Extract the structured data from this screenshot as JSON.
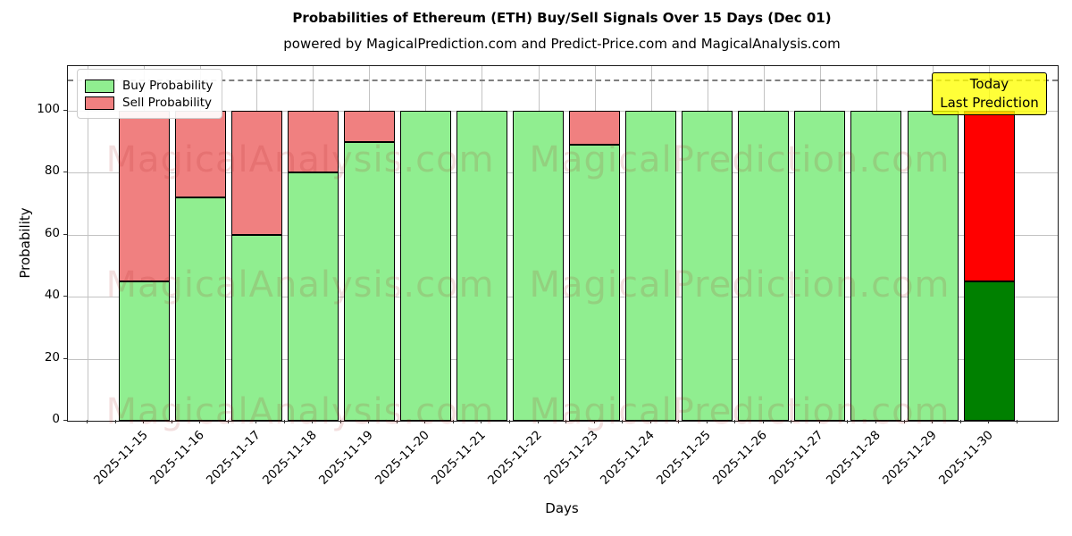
{
  "title": "Probabilities of Ethereum (ETH) Buy/Sell Signals Over 15 Days (Dec 01)",
  "subtitle": "powered by MagicalPrediction.com and Predict-Price.com and MagicalAnalysis.com",
  "legend": {
    "items": [
      {
        "label": "Buy Probability",
        "color": "#90EE90"
      },
      {
        "label": "Sell Probability",
        "color": "#F08080"
      }
    ]
  },
  "annotation": {
    "line1": "Today",
    "line2": "Last Prediction",
    "bg_color": "#FFFF00"
  },
  "watermarks": {
    "left": "MagicalAnalysis.com",
    "right": "MagicalPrediction.com"
  },
  "axes": {
    "x_label": "Days",
    "y_label": "Probability",
    "y_ticks": [
      "0",
      "20",
      "40",
      "60",
      "80",
      "100"
    ]
  },
  "colors": {
    "buy": "#90EE90",
    "sell": "#F08080",
    "today_buy": "#008000",
    "today_sell": "#FF0000",
    "grid": "#c3c3c3",
    "dashed_line": "#7f7f7f"
  },
  "chart_data": {
    "type": "bar",
    "stacked": true,
    "title": "Probabilities of Ethereum (ETH) Buy/Sell Signals Over 15 Days (Dec 01)",
    "xlabel": "Days",
    "ylabel": "Probability",
    "ylim": [
      0,
      114.5
    ],
    "grid": true,
    "legend_position": "upper left",
    "dashed_line_y": 110,
    "categories": [
      "2025-11-15",
      "2025-11-16",
      "2025-11-17",
      "2025-11-18",
      "2025-11-19",
      "2025-11-20",
      "2025-11-21",
      "2025-11-22",
      "2025-11-23",
      "2025-11-24",
      "2025-11-25",
      "2025-11-26",
      "2025-11-27",
      "2025-11-28",
      "2025-11-29",
      "2025-11-30"
    ],
    "series": [
      {
        "name": "Buy Probability",
        "color": "#90EE90",
        "values": [
          45,
          72,
          60,
          80,
          90,
          100,
          100,
          100,
          89,
          100,
          100,
          100,
          100,
          100,
          100,
          45
        ]
      },
      {
        "name": "Sell Probability",
        "color": "#F08080",
        "values": [
          55,
          28,
          40,
          20,
          10,
          0,
          0,
          0,
          11,
          0,
          0,
          0,
          0,
          0,
          0,
          55
        ]
      }
    ],
    "today_bar": {
      "category": "2025-11-30",
      "buy_color": "#008000",
      "sell_color": "#FF0000"
    },
    "y_tick_values": [
      0,
      20,
      40,
      60,
      80,
      100
    ]
  }
}
